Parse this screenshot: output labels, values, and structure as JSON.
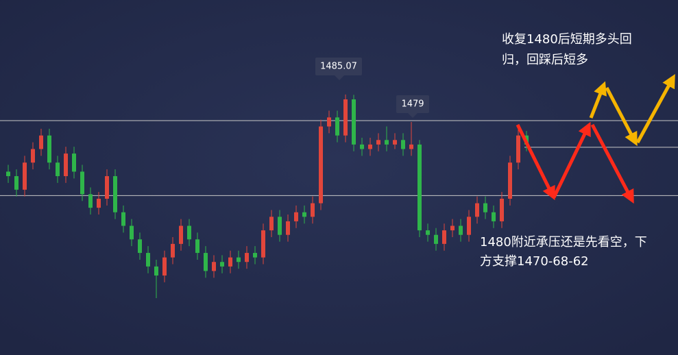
{
  "chart_data": {
    "type": "candlestick",
    "open": [
      1468,
      1467,
      1464,
      1470,
      1473,
      1476,
      1470,
      1467,
      1472,
      1468,
      1463,
      1460,
      1462,
      1467,
      1459,
      1456,
      1453,
      1450,
      1447,
      1445,
      1449,
      1452,
      1456,
      1453,
      1450,
      1446,
      1448,
      1447,
      1449,
      1448,
      1450,
      1449,
      1455,
      1458,
      1454,
      1457,
      1459,
      1458,
      1461,
      1478,
      1480,
      1476,
      1484,
      1474,
      1473,
      1474,
      1475,
      1474,
      1475,
      1473,
      1474,
      1455,
      1454,
      1452,
      1455,
      1456,
      1454,
      1458,
      1461,
      1459,
      1457,
      1462,
      1470,
      1476
    ],
    "high": [
      1469.5,
      1468.5,
      1471.5,
      1474.5,
      1477.5,
      1477.5,
      1471.5,
      1473.5,
      1473.5,
      1469.5,
      1464.5,
      1463.5,
      1468.5,
      1468.5,
      1460.5,
      1457.5,
      1454.5,
      1451.5,
      1448.5,
      1450.5,
      1453.5,
      1457.5,
      1457.5,
      1454.5,
      1451.5,
      1449.5,
      1449.5,
      1450.5,
      1450.5,
      1451.5,
      1451.5,
      1456.5,
      1459.5,
      1459.5,
      1458.5,
      1460.5,
      1460.5,
      1462.5,
      1479.5,
      1481.5,
      1481.5,
      1485.07,
      1485,
      1475.5,
      1475.5,
      1476.5,
      1478,
      1476.5,
      1476.5,
      1479,
      1475,
      1456.5,
      1455.5,
      1456.5,
      1457.5,
      1457.5,
      1459.5,
      1462.5,
      1462.5,
      1460.5,
      1463.5,
      1471.5,
      1477.5,
      1477
    ],
    "low": [
      1465.5,
      1462.5,
      1462.5,
      1468.5,
      1471.5,
      1468.5,
      1465.5,
      1465.5,
      1466.5,
      1461.5,
      1458.5,
      1458.5,
      1460.5,
      1457.5,
      1454.5,
      1451.5,
      1448.5,
      1445.5,
      1440,
      1443.5,
      1447.5,
      1450.5,
      1451.5,
      1448.5,
      1444.5,
      1444.5,
      1445.5,
      1445.5,
      1446.5,
      1446.5,
      1447.5,
      1447.5,
      1453.5,
      1452.5,
      1452.5,
      1455.5,
      1456.5,
      1456.5,
      1459.5,
      1476.5,
      1474.5,
      1474.5,
      1472.5,
      1471.5,
      1471.5,
      1472.5,
      1472.5,
      1473,
      1471.5,
      1471.5,
      1453.5,
      1452.5,
      1450.5,
      1450.5,
      1453.5,
      1452.5,
      1452.5,
      1456.5,
      1457.5,
      1455.5,
      1455.5,
      1460.5,
      1468.5,
      1472.5
    ],
    "close": [
      1467,
      1464,
      1470,
      1473,
      1476,
      1470,
      1467,
      1472,
      1468,
      1463,
      1460,
      1462,
      1467,
      1459,
      1456,
      1453,
      1450,
      1447,
      1445,
      1449,
      1452,
      1456,
      1453,
      1450,
      1446,
      1448,
      1447,
      1449,
      1448,
      1450,
      1449,
      1455,
      1458,
      1454,
      1457,
      1459,
      1458,
      1461,
      1478,
      1480,
      1476,
      1484,
      1474,
      1473,
      1474,
      1475,
      1474,
      1475,
      1473,
      1474,
      1455,
      1454,
      1452,
      1455,
      1456,
      1454,
      1458,
      1461,
      1459,
      1457,
      1462,
      1470,
      1476,
      1474
    ],
    "up_color": "#e2463b",
    "down_color": "#2fb54a",
    "ylim": [
      1427.4,
      1506
    ],
    "levels": [
      1479.3,
      1462.7,
      1473.4
    ],
    "level_color": "#c8c8c8",
    "annotations": [
      [
        "收复1480后短期多头回",
        "归，回踩后短多"
      ],
      [
        "1480附近承压还是先看空，下",
        "方支撑1470-68-62"
      ]
    ]
  }
}
